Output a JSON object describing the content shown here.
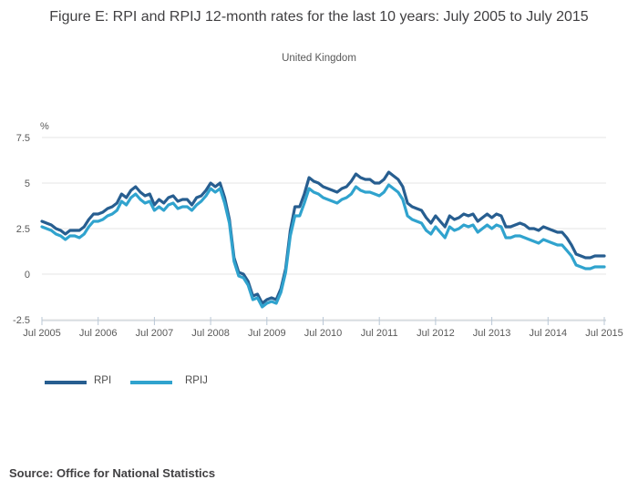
{
  "header": {
    "title": "Figure E: RPI and RPIJ 12-month rates for the last 10 years: July 2005 to July 2015",
    "subtitle": "United Kingdom"
  },
  "source_note": "Source: Office for National Statistics",
  "legend": {
    "items": [
      {
        "label": "RPI",
        "color": "#275e90"
      },
      {
        "label": "RPIJ",
        "color": "#30a3ce"
      }
    ]
  },
  "chart_data": {
    "type": "line",
    "title": "Figure E: RPI and RPIJ 12-month rates for the last 10 years: July 2005 to July 2015",
    "subtitle": "United Kingdom",
    "unit_label": "%",
    "x_frequency": "monthly",
    "x_range": [
      "Jul 2005",
      "Jul 2015"
    ],
    "xticks": [
      "Jul 2005",
      "Jul 2006",
      "Jul 2007",
      "Jul 2008",
      "Jul 2009",
      "Jul 2010",
      "Jul 2011",
      "Jul 2012",
      "Jul 2013",
      "Jul 2014",
      "Jul 2015"
    ],
    "months_per_xtick": 12,
    "yticks": [
      {
        "label": "7.5",
        "value": 7.5
      },
      {
        "label": "5",
        "value": 5
      },
      {
        "label": "2.5",
        "value": 2.5
      },
      {
        "label": "0",
        "value": 0
      },
      {
        "label": "-2.5",
        "value": -2.5
      }
    ],
    "ylim": [
      -2.5,
      7.5
    ],
    "grid": "horizontal",
    "legend_position": "bottom-left",
    "colors": {
      "grid": "#e6e6e6",
      "axis": "#c9d2da",
      "tick": "#b9c7d6",
      "tick_text": "#595959"
    },
    "series": [
      {
        "name": "RPI",
        "color": "#275e90",
        "values": [
          2.9,
          2.8,
          2.7,
          2.5,
          2.4,
          2.2,
          2.4,
          2.4,
          2.4,
          2.6,
          3.0,
          3.3,
          3.3,
          3.4,
          3.6,
          3.7,
          3.9,
          4.4,
          4.2,
          4.6,
          4.8,
          4.5,
          4.3,
          4.4,
          3.8,
          4.1,
          3.9,
          4.2,
          4.3,
          4.0,
          4.1,
          4.1,
          3.8,
          4.2,
          4.3,
          4.6,
          5.0,
          4.8,
          5.0,
          4.2,
          3.0,
          0.9,
          0.1,
          0.0,
          -0.4,
          -1.2,
          -1.1,
          -1.6,
          -1.4,
          -1.3,
          -1.4,
          -0.8,
          0.3,
          2.4,
          3.7,
          3.7,
          4.4,
          5.3,
          5.1,
          5.0,
          4.8,
          4.7,
          4.6,
          4.5,
          4.7,
          4.8,
          5.1,
          5.5,
          5.3,
          5.2,
          5.2,
          5.0,
          5.0,
          5.2,
          5.6,
          5.4,
          5.2,
          4.8,
          3.9,
          3.7,
          3.6,
          3.5,
          3.1,
          2.8,
          3.2,
          2.9,
          2.6,
          3.2,
          3.0,
          3.1,
          3.3,
          3.2,
          3.3,
          2.9,
          3.1,
          3.3,
          3.1,
          3.3,
          3.2,
          2.6,
          2.6,
          2.7,
          2.8,
          2.7,
          2.5,
          2.5,
          2.4,
          2.6,
          2.5,
          2.4,
          2.3,
          2.3,
          2.0,
          1.6,
          1.1,
          1.0,
          0.9,
          0.9,
          1.0,
          1.0,
          1.0
        ]
      },
      {
        "name": "RPIJ",
        "color": "#30a3ce",
        "values": [
          2.6,
          2.5,
          2.4,
          2.2,
          2.1,
          1.9,
          2.1,
          2.1,
          2.0,
          2.2,
          2.6,
          2.9,
          2.9,
          3.0,
          3.2,
          3.3,
          3.5,
          4.0,
          3.8,
          4.2,
          4.4,
          4.1,
          3.9,
          4.0,
          3.5,
          3.7,
          3.5,
          3.8,
          3.9,
          3.6,
          3.7,
          3.7,
          3.5,
          3.8,
          4.0,
          4.3,
          4.7,
          4.5,
          4.7,
          3.9,
          2.8,
          0.7,
          -0.1,
          -0.2,
          -0.6,
          -1.4,
          -1.3,
          -1.8,
          -1.6,
          -1.5,
          -1.6,
          -1.0,
          0.1,
          2.1,
          3.2,
          3.2,
          3.9,
          4.7,
          4.5,
          4.4,
          4.2,
          4.1,
          4.0,
          3.9,
          4.1,
          4.2,
          4.4,
          4.8,
          4.6,
          4.5,
          4.5,
          4.4,
          4.3,
          4.5,
          4.9,
          4.7,
          4.5,
          4.1,
          3.2,
          3.0,
          2.9,
          2.8,
          2.4,
          2.2,
          2.6,
          2.3,
          2.0,
          2.6,
          2.4,
          2.5,
          2.7,
          2.6,
          2.7,
          2.3,
          2.5,
          2.7,
          2.5,
          2.7,
          2.6,
          2.0,
          2.0,
          2.1,
          2.1,
          2.0,
          1.9,
          1.8,
          1.7,
          1.9,
          1.8,
          1.7,
          1.6,
          1.6,
          1.3,
          1.0,
          0.5,
          0.4,
          0.3,
          0.3,
          0.4,
          0.4,
          0.4
        ]
      }
    ]
  }
}
